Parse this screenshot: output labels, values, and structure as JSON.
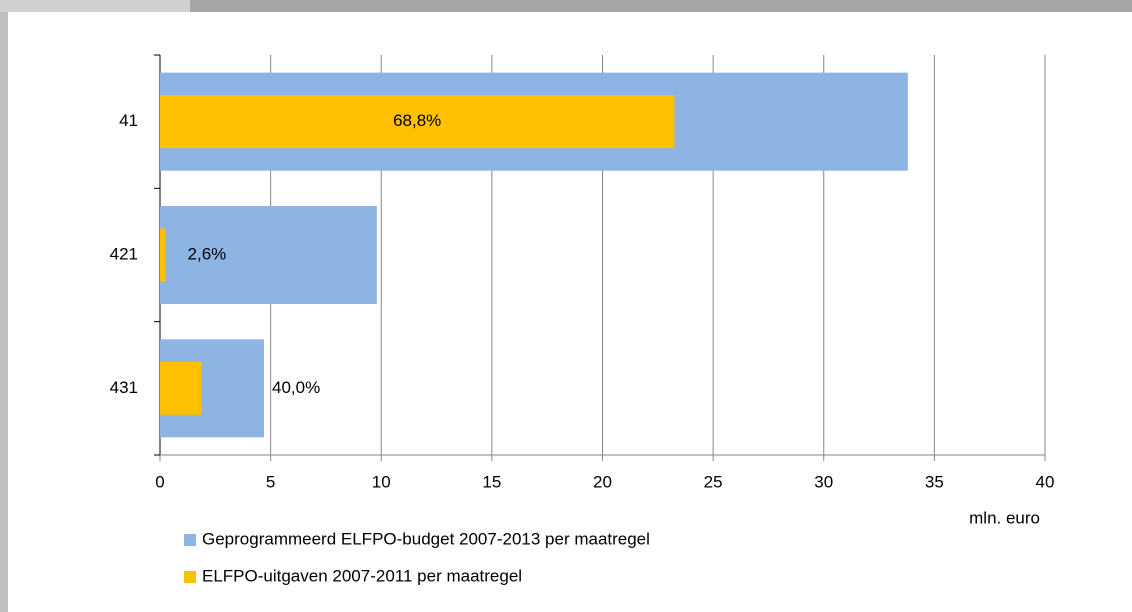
{
  "chart_data": {
    "type": "bar",
    "orientation": "horizontal",
    "categories": [
      "41",
      "421",
      "431"
    ],
    "series": [
      {
        "name": "Geprogrammeerd ELFPO-budget 2007-2013 per maatregel",
        "color": "#8eb4e3",
        "values": [
          33.8,
          9.8,
          4.7
        ]
      },
      {
        "name": "ELFPO-uitgaven 2007-2011 per maatregel",
        "color": "#ffc000",
        "values": [
          23.25,
          0.25,
          1.88
        ],
        "labels": [
          "68,8%",
          "2,6%",
          "40,0%"
        ]
      }
    ],
    "x_label": "mln. euro",
    "xlim": [
      0,
      40
    ],
    "xticks": [
      0,
      5,
      10,
      15,
      20,
      25,
      30,
      35,
      40
    ],
    "grid": true,
    "legend": "bottom"
  }
}
